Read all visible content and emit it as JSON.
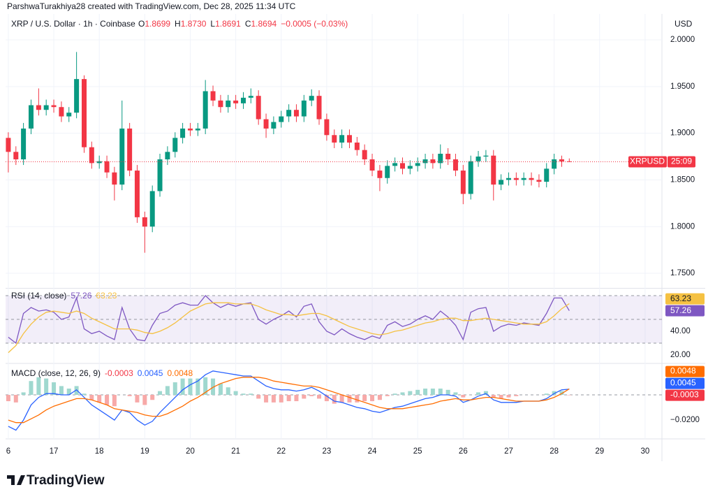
{
  "header": {
    "credit": "ParshwaTurakhiya28 created with TradingView.com, Dec 28, 2025 11:34 UTC"
  },
  "footer": {
    "brand": "TradingView"
  },
  "chart_data": [
    {
      "type": "candlestick",
      "title": "XRP / U.S. Dollar · 1h · Coinbase",
      "ohlc_legend": [
        {
          "label": "O",
          "value": "1.8699"
        },
        {
          "label": "H",
          "value": "1.8730"
        },
        {
          "label": "L",
          "value": "1.8691"
        },
        {
          "label": "C",
          "value": "1.8694"
        }
      ],
      "change": "−0.0005 (−0.03%)",
      "currency": "USD",
      "symbol_tag": "XRPUSD",
      "countdown": "25:09",
      "up_color": "#089981",
      "down_color": "#f23645",
      "x": [
        16,
        16.167,
        16.333,
        16.5,
        16.667,
        16.833,
        17,
        17.167,
        17.333,
        17.5,
        17.667,
        17.833,
        18,
        18.167,
        18.333,
        18.5,
        18.667,
        18.833,
        19,
        19.167,
        19.333,
        19.5,
        19.667,
        19.833,
        20,
        20.167,
        20.333,
        20.5,
        20.667,
        20.833,
        21,
        21.167,
        21.333,
        21.5,
        21.667,
        21.833,
        22,
        22.167,
        22.333,
        22.5,
        22.667,
        22.833,
        23,
        23.167,
        23.333,
        23.5,
        23.667,
        23.833,
        24,
        24.167,
        24.333,
        24.5,
        24.667,
        24.833,
        25,
        25.167,
        25.333,
        25.5,
        25.667,
        25.833,
        26,
        26.167,
        26.333,
        26.5,
        26.667,
        26.833,
        27,
        27.167,
        27.333,
        27.5,
        27.667,
        27.833,
        28,
        28.167,
        28.333
      ],
      "open": [
        1.895,
        1.88,
        1.872,
        1.905,
        1.93,
        1.925,
        1.93,
        1.928,
        1.918,
        1.922,
        1.958,
        1.885,
        1.868,
        1.87,
        1.858,
        1.845,
        1.905,
        1.86,
        1.81,
        1.8,
        1.838,
        1.872,
        1.88,
        1.895,
        1.905,
        1.903,
        1.905,
        1.945,
        1.935,
        1.928,
        1.935,
        1.932,
        1.938,
        1.94,
        1.915,
        1.905,
        1.912,
        1.918,
        1.925,
        1.918,
        1.935,
        1.94,
        1.915,
        1.898,
        1.89,
        1.898,
        1.89,
        1.882,
        1.872,
        1.86,
        1.852,
        1.865,
        1.868,
        1.862,
        1.865,
        1.868,
        1.872,
        1.868,
        1.878,
        1.872,
        1.86,
        1.835,
        1.87,
        1.875,
        1.876,
        1.845,
        1.85,
        1.852,
        1.85,
        1.852,
        1.85,
        1.848,
        1.862,
        1.872,
        1.8699
      ],
      "high": [
        1.901,
        1.886,
        1.911,
        1.936,
        1.948,
        1.936,
        1.936,
        1.934,
        1.928,
        1.987,
        1.962,
        1.891,
        1.876,
        1.876,
        1.864,
        1.935,
        1.911,
        1.866,
        1.816,
        1.844,
        1.878,
        1.886,
        1.901,
        1.911,
        1.911,
        1.911,
        1.957,
        1.951,
        1.941,
        1.941,
        1.941,
        1.944,
        1.948,
        1.946,
        1.921,
        1.918,
        1.924,
        1.931,
        1.931,
        1.941,
        1.947,
        1.946,
        1.921,
        1.904,
        1.904,
        1.904,
        1.896,
        1.888,
        1.878,
        1.866,
        1.871,
        1.874,
        1.874,
        1.871,
        1.874,
        1.878,
        1.878,
        1.888,
        1.884,
        1.878,
        1.866,
        1.876,
        1.881,
        1.882,
        1.882,
        1.856,
        1.858,
        1.858,
        1.858,
        1.858,
        1.856,
        1.868,
        1.878,
        1.876,
        1.873
      ],
      "low": [
        1.858,
        1.866,
        1.866,
        1.899,
        1.919,
        1.919,
        1.922,
        1.912,
        1.912,
        1.916,
        1.879,
        1.862,
        1.862,
        1.852,
        1.828,
        1.839,
        1.854,
        1.804,
        1.772,
        1.794,
        1.832,
        1.866,
        1.874,
        1.889,
        1.897,
        1.897,
        1.899,
        1.929,
        1.922,
        1.922,
        1.926,
        1.926,
        1.932,
        1.909,
        1.895,
        1.899,
        1.906,
        1.912,
        1.912,
        1.912,
        1.929,
        1.909,
        1.892,
        1.884,
        1.884,
        1.884,
        1.876,
        1.866,
        1.854,
        1.838,
        1.846,
        1.859,
        1.856,
        1.856,
        1.859,
        1.862,
        1.862,
        1.862,
        1.866,
        1.854,
        1.824,
        1.829,
        1.864,
        1.869,
        1.828,
        1.839,
        1.844,
        1.844,
        1.844,
        1.844,
        1.842,
        1.842,
        1.856,
        1.864,
        1.8691
      ],
      "close": [
        1.88,
        1.872,
        1.905,
        1.93,
        1.925,
        1.93,
        1.928,
        1.918,
        1.922,
        1.958,
        1.885,
        1.868,
        1.87,
        1.858,
        1.845,
        1.905,
        1.86,
        1.81,
        1.8,
        1.838,
        1.872,
        1.88,
        1.895,
        1.905,
        1.903,
        1.905,
        1.945,
        1.935,
        1.928,
        1.935,
        1.932,
        1.938,
        1.94,
        1.915,
        1.905,
        1.912,
        1.918,
        1.925,
        1.918,
        1.935,
        1.94,
        1.915,
        1.898,
        1.89,
        1.898,
        1.89,
        1.882,
        1.872,
        1.86,
        1.852,
        1.865,
        1.868,
        1.862,
        1.865,
        1.868,
        1.872,
        1.868,
        1.878,
        1.872,
        1.86,
        1.835,
        1.87,
        1.875,
        1.876,
        1.845,
        1.85,
        1.852,
        1.85,
        1.852,
        1.85,
        1.848,
        1.862,
        1.872,
        1.8699,
        1.8694
      ],
      "xlim": [
        15.94,
        30.37
      ],
      "xticks": [
        {
          "value": 16,
          "label": "6"
        },
        17,
        18,
        19,
        20,
        21,
        22,
        23,
        24,
        25,
        26,
        27,
        28,
        29,
        30
      ],
      "ylim": [
        1.7358,
        2.0277
      ],
      "yticks": [
        {
          "value": 1.75,
          "label": "1.7500"
        },
        {
          "value": 1.8,
          "label": "1.8000"
        },
        {
          "value": 1.85,
          "label": "1.8500"
        },
        {
          "value": 1.9,
          "label": "1.9000"
        },
        {
          "value": 1.95,
          "label": "1.9500"
        },
        {
          "value": 2,
          "label": "2.0000"
        }
      ],
      "grid": true
    },
    {
      "type": "line",
      "title": "RSI (14, close)",
      "x": [
        16,
        16.167,
        16.333,
        16.5,
        16.667,
        16.833,
        17,
        17.167,
        17.333,
        17.5,
        17.667,
        17.833,
        18,
        18.167,
        18.333,
        18.5,
        18.667,
        18.833,
        19,
        19.167,
        19.333,
        19.5,
        19.667,
        19.833,
        20,
        20.167,
        20.333,
        20.5,
        20.667,
        20.833,
        21,
        21.167,
        21.333,
        21.5,
        21.667,
        21.833,
        22,
        22.167,
        22.333,
        22.5,
        22.667,
        22.833,
        23,
        23.167,
        23.333,
        23.5,
        23.667,
        23.833,
        24,
        24.167,
        24.333,
        24.5,
        24.667,
        24.833,
        25,
        25.167,
        25.333,
        25.5,
        25.667,
        25.833,
        26,
        26.167,
        26.333,
        26.5,
        26.667,
        26.833,
        27,
        27.167,
        27.333,
        27.5,
        27.667,
        27.833,
        28,
        28.167,
        28.333
      ],
      "series": [
        {
          "color": "#7e57c2",
          "values": [
            35,
            30,
            55,
            60,
            57,
            58,
            56,
            50,
            52,
            68,
            42,
            38,
            40,
            36,
            33,
            60,
            42,
            33,
            32,
            45,
            55,
            57,
            62,
            64,
            62,
            62,
            70,
            64,
            60,
            63,
            61,
            63,
            64,
            50,
            46,
            50,
            53,
            57,
            52,
            61,
            63,
            48,
            40,
            37,
            42,
            38,
            35,
            33,
            36,
            34,
            45,
            48,
            44,
            46,
            50,
            53,
            50,
            57,
            52,
            45,
            33,
            56,
            59,
            60,
            40,
            44,
            46,
            45,
            47,
            46,
            45,
            55,
            68,
            68,
            57.26
          ]
        },
        {
          "color": "#f5c142",
          "values": [
            22,
            28,
            38,
            46,
            52,
            56,
            57,
            56,
            55,
            57,
            55,
            51,
            48,
            45,
            42,
            42,
            42,
            41,
            39,
            38,
            40,
            43,
            47,
            52,
            57,
            60,
            63,
            64,
            64,
            64,
            63,
            63,
            63,
            61,
            58,
            56,
            54,
            54,
            53,
            54,
            55,
            55,
            53,
            50,
            47,
            44,
            42,
            40,
            38,
            37,
            38,
            40,
            41,
            43,
            45,
            47,
            48,
            50,
            51,
            51,
            49,
            49,
            50,
            51,
            50,
            49,
            48,
            47,
            46,
            46,
            46,
            48,
            53,
            59,
            63.23
          ]
        }
      ],
      "levels": [
        70,
        50,
        30
      ],
      "band_color": "rgba(126,87,194,0.1)",
      "xlim": [
        15.94,
        30.37
      ],
      "ylim": [
        14.1,
        74.7
      ],
      "yticks": [
        {
          "value": 20,
          "label": "20.00"
        },
        {
          "value": 40,
          "label": "40.00"
        }
      ]
    },
    {
      "type": "line",
      "title": "MACD (close, 12, 26, 9)",
      "x": [
        16,
        16.167,
        16.333,
        16.5,
        16.667,
        16.833,
        17,
        17.167,
        17.333,
        17.5,
        17.667,
        17.833,
        18,
        18.167,
        18.333,
        18.5,
        18.667,
        18.833,
        19,
        19.167,
        19.333,
        19.5,
        19.667,
        19.833,
        20,
        20.167,
        20.333,
        20.5,
        20.667,
        20.833,
        21,
        21.167,
        21.333,
        21.5,
        21.667,
        21.833,
        22,
        22.167,
        22.333,
        22.5,
        22.667,
        22.833,
        23,
        23.167,
        23.333,
        23.5,
        23.667,
        23.833,
        24,
        24.167,
        24.333,
        24.5,
        24.667,
        24.833,
        25,
        25.167,
        25.333,
        25.5,
        25.667,
        25.833,
        26,
        26.167,
        26.333,
        26.5,
        26.667,
        26.833,
        27,
        27.167,
        27.333,
        27.5,
        27.667,
        27.833,
        28,
        28.167,
        28.333
      ],
      "histogram": {
        "up_color": "#9fd8cf",
        "down_color": "#f7a9a8",
        "values": [
          -0.005,
          -0.006,
          0.002,
          0.011,
          0.014,
          0.013,
          0.01,
          0.007,
          0.005,
          0.007,
          0.001,
          -0.004,
          -0.006,
          -0.008,
          -0.009,
          0,
          -0.001,
          -0.006,
          -0.008,
          -0.004,
          0.003,
          0.007,
          0.01,
          0.013,
          0.013,
          0.013,
          0.014,
          0.013,
          0.009,
          0.006,
          0.003,
          0.001,
          0.001,
          -0.003,
          -0.006,
          -0.006,
          -0.006,
          -0.005,
          -0.005,
          -0.003,
          -0.001,
          -0.003,
          -0.005,
          -0.007,
          -0.006,
          -0.006,
          -0.006,
          -0.005,
          -0.005,
          -0.004,
          -0.001,
          0.001,
          0.002,
          0.003,
          0.004,
          0.005,
          0.005,
          0.005,
          0.004,
          0.002,
          -0.002,
          0,
          0.002,
          0.003,
          -0.002,
          -0.003,
          -0.002,
          -0.001,
          0,
          0,
          0,
          0.001,
          0.003,
          0.003,
          -0.0003
        ]
      },
      "series": [
        {
          "color": "#2962ff",
          "values": [
            -0.025,
            -0.028,
            -0.02,
            -0.008,
            -0.002,
            0.001,
            0.001,
            0,
            0,
            0.004,
            -0.002,
            -0.008,
            -0.012,
            -0.016,
            -0.02,
            -0.012,
            -0.014,
            -0.02,
            -0.024,
            -0.021,
            -0.014,
            -0.008,
            -0.002,
            0.004,
            0.008,
            0.011,
            0.016,
            0.019,
            0.018,
            0.017,
            0.016,
            0.015,
            0.015,
            0.011,
            0.007,
            0.005,
            0.004,
            0.004,
            0.003,
            0.004,
            0.006,
            0.003,
            -0.001,
            -0.005,
            -0.006,
            -0.008,
            -0.01,
            -0.011,
            -0.013,
            -0.014,
            -0.012,
            -0.01,
            -0.009,
            -0.007,
            -0.005,
            -0.003,
            -0.002,
            0,
            0,
            -0.001,
            -0.006,
            -0.004,
            -0.001,
            0.001,
            -0.004,
            -0.006,
            -0.006,
            -0.006,
            -0.005,
            -0.005,
            -0.005,
            -0.003,
            0.001,
            0.004,
            0.0045
          ]
        },
        {
          "color": "#ff6d00",
          "values": [
            -0.02,
            -0.022,
            -0.022,
            -0.019,
            -0.016,
            -0.012,
            -0.009,
            -0.007,
            -0.005,
            -0.003,
            -0.003,
            -0.004,
            -0.006,
            -0.008,
            -0.011,
            -0.012,
            -0.013,
            -0.014,
            -0.016,
            -0.017,
            -0.017,
            -0.015,
            -0.012,
            -0.009,
            -0.005,
            -0.002,
            0.002,
            0.006,
            0.009,
            0.011,
            0.013,
            0.014,
            0.014,
            0.014,
            0.013,
            0.011,
            0.01,
            0.009,
            0.008,
            0.007,
            0.007,
            0.006,
            0.004,
            0.002,
            0,
            -0.002,
            -0.004,
            -0.006,
            -0.008,
            -0.01,
            -0.011,
            -0.011,
            -0.011,
            -0.01,
            -0.009,
            -0.008,
            -0.007,
            -0.005,
            -0.004,
            -0.003,
            -0.004,
            -0.004,
            -0.003,
            -0.002,
            -0.002,
            -0.003,
            -0.004,
            -0.005,
            -0.005,
            -0.005,
            -0.005,
            -0.004,
            -0.002,
            0.001,
            0.0048
          ]
        }
      ],
      "levels": [
        0
      ],
      "xlim": [
        15.94,
        30.37
      ],
      "ylim": [
        -0.0333,
        0.0239
      ],
      "yticks": [
        {
          "value": -0.02,
          "label": "−0.0200"
        }
      ]
    }
  ]
}
